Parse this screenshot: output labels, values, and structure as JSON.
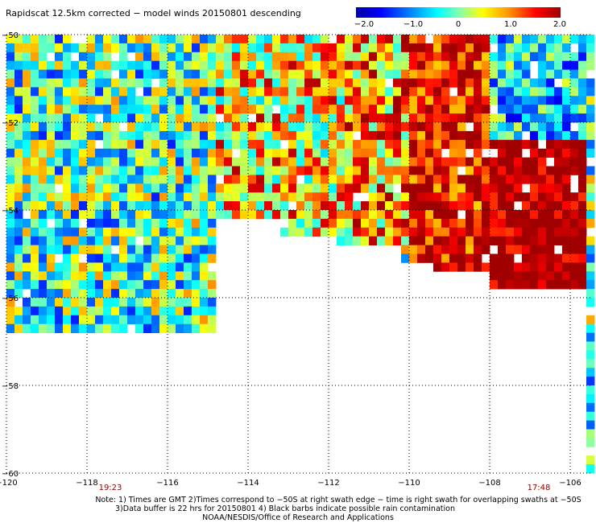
{
  "title": "Rapidscat 12.5km corrected − model winds 20150801 descending",
  "colorbar": {
    "range": [
      -2.0,
      2.0
    ],
    "tick_labels": [
      "−2.0",
      "−1.0",
      "0",
      "1.0",
      "2.0"
    ],
    "colors": [
      "#0000a0",
      "#0000ff",
      "#0090ff",
      "#00ffff",
      "#80ffb0",
      "#ffff00",
      "#ff9000",
      "#ff0000",
      "#a00000"
    ]
  },
  "axes": {
    "x_tick_labels": [
      "−120",
      "−118",
      "−116",
      "−114",
      "−112",
      "−110",
      "−108",
      "−106"
    ],
    "y_tick_labels": [
      "−50",
      "−52",
      "−54",
      "−56",
      "−58",
      "−60"
    ],
    "grid": "dotted"
  },
  "times": [
    "19:23",
    "17:48"
  ],
  "notes": [
    "Note: 1) Times are GMT 2)Times correspond to −50S at right swath edge − time is right swath for overlapping swaths at −50S",
    "3)Data buffer is 22 hrs for 20150801 4) Black barbs indicate possible rain contamination",
    "NOAA/NESDIS/Office of Research and Applications"
  ],
  "chart_data": {
    "type": "heatmap",
    "title": "Rapidscat 12.5km corrected − model winds 20150801 descending",
    "xlim": [
      -120,
      -105.5
    ],
    "ylim": [
      -60,
      -50
    ],
    "xticks": [
      -120,
      -118,
      -116,
      -114,
      -112,
      -110,
      -108,
      -106
    ],
    "yticks": [
      -50,
      -52,
      -54,
      -56,
      -58,
      -60
    ],
    "value_range": [
      -2.0,
      2.0
    ],
    "cell_size_deg": [
      0.2,
      0.2
    ],
    "coverage_southern_edge": [
      {
        "lon_from": -120,
        "lon_to": -114.8,
        "lat": -56.8
      },
      {
        "lon_from": -114.8,
        "lon_to": -113.2,
        "lat": -54.2
      },
      {
        "lon_from": -113.2,
        "lon_to": -111.8,
        "lat": -54.6
      },
      {
        "lon_from": -111.8,
        "lon_to": -110.2,
        "lat": -54.8
      },
      {
        "lon_from": -110.2,
        "lon_to": -109.4,
        "lat": -55.2
      },
      {
        "lon_from": -109.4,
        "lon_to": -108.0,
        "lat": -55.4
      },
      {
        "lon_from": -108.0,
        "lon_to": -105.5,
        "lat": -55.8
      }
    ],
    "regions": [
      {
        "lon": [
          -120,
          -114.8
        ],
        "lat": [
          -57,
          -50
        ],
        "mean": -0.2,
        "spread": 1.2
      },
      {
        "lon": [
          -114.8,
          -111.5
        ],
        "lat": [
          -55,
          -50
        ],
        "mean": 0.6,
        "spread": 1.3
      },
      {
        "lon": [
          -111.5,
          -110
        ],
        "lat": [
          -55,
          -50
        ],
        "mean": 0.9,
        "spread": 1.2
      },
      {
        "lon": [
          -110,
          -108
        ],
        "lat": [
          -56,
          -50
        ],
        "mean": 1.6,
        "spread": 0.9
      },
      {
        "lon": [
          -108,
          -105.5
        ],
        "lat": [
          -56,
          -52.5
        ],
        "mean": 1.9,
        "spread": 0.6
      },
      {
        "lon": [
          -108,
          -105.5
        ],
        "lat": [
          -52.5,
          -50
        ],
        "mean": -0.6,
        "spread": 1.0
      }
    ]
  }
}
